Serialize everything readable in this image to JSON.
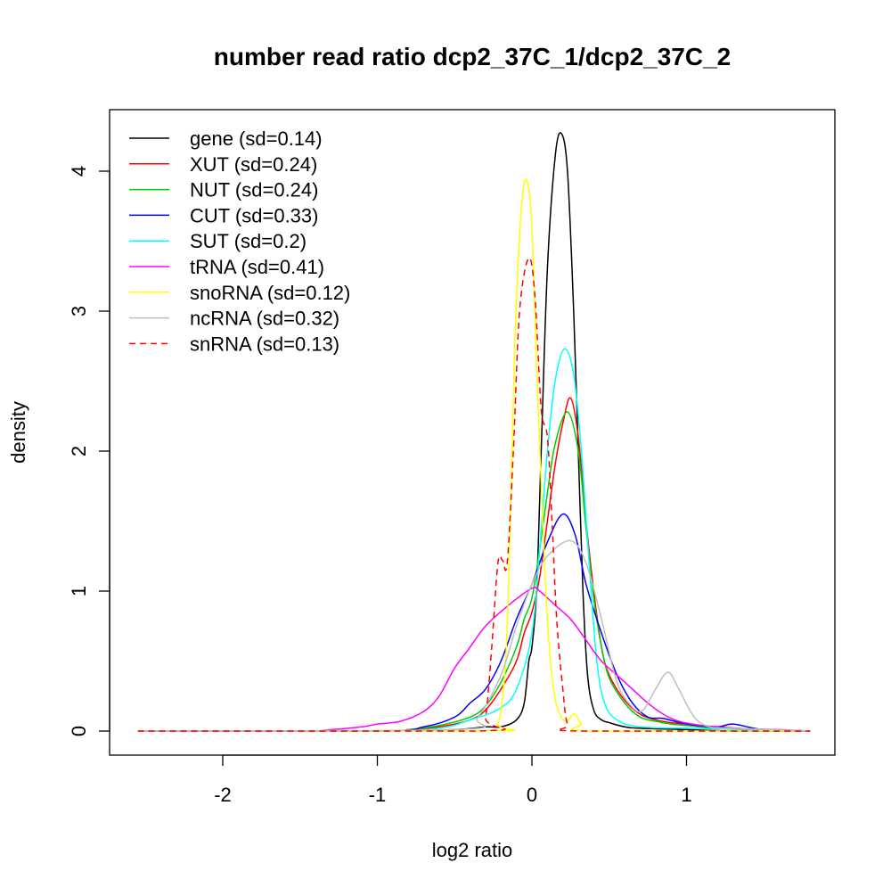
{
  "chart_data": {
    "type": "line",
    "title": "number read ratio dcp2_37C_1/dcp2_37C_2",
    "xlabel": "log2 ratio",
    "ylabel": "density",
    "xlim": [
      -2.7,
      1.95
    ],
    "ylim": [
      -0.17,
      4.44
    ],
    "xticks": [
      -2,
      -1,
      0,
      1
    ],
    "xtick_labels": [
      "-2",
      "-1",
      "0",
      "1"
    ],
    "yticks": [
      0,
      1,
      2,
      3,
      4
    ],
    "ytick_labels": [
      "0",
      "1",
      "2",
      "3",
      "4"
    ],
    "grid": false,
    "legend_position": "top-left",
    "series": [
      {
        "name": "gene (sd=0.14)",
        "color": "#000000",
        "dash": false,
        "x": [
          -2.55,
          -1,
          -0.5,
          -0.3,
          -0.2,
          -0.1,
          -0.05,
          -0.02,
          0,
          0.03,
          0.06,
          0.1,
          0.15,
          0.19,
          0.23,
          0.27,
          0.3,
          0.33,
          0.36,
          0.4,
          0.45,
          0.5,
          0.6,
          0.7,
          1.0,
          1.3,
          1.8
        ],
        "y": [
          0,
          0,
          0.01,
          0.03,
          0.03,
          0.08,
          0.2,
          0.5,
          0.6,
          1.0,
          2.0,
          3.3,
          4.1,
          4.27,
          4.0,
          3.0,
          2.0,
          1.0,
          0.4,
          0.15,
          0.08,
          0.06,
          0.03,
          0.02,
          0.01,
          0,
          0
        ]
      },
      {
        "name": "XUT (sd=0.24)",
        "color": "#ff0000",
        "dash": false,
        "x": [
          -2.55,
          -1,
          -0.8,
          -0.6,
          -0.4,
          -0.3,
          -0.2,
          -0.1,
          -0.05,
          0,
          0.05,
          0.1,
          0.15,
          0.2,
          0.25,
          0.3,
          0.35,
          0.4,
          0.45,
          0.5,
          0.6,
          0.7,
          0.8,
          0.9,
          1.0,
          1.2,
          1.5,
          1.8
        ],
        "y": [
          0,
          0,
          0.01,
          0.03,
          0.08,
          0.15,
          0.3,
          0.5,
          0.7,
          0.85,
          1.1,
          1.5,
          1.9,
          2.2,
          2.38,
          2.1,
          1.5,
          1.0,
          0.6,
          0.4,
          0.22,
          0.12,
          0.08,
          0.06,
          0.05,
          0.03,
          0.01,
          0
        ]
      },
      {
        "name": "NUT (sd=0.24)",
        "color": "#00cd00",
        "dash": false,
        "x": [
          -2.55,
          -1,
          -0.8,
          -0.6,
          -0.4,
          -0.3,
          -0.2,
          -0.1,
          -0.05,
          0,
          0.05,
          0.1,
          0.15,
          0.23,
          0.3,
          0.35,
          0.4,
          0.45,
          0.5,
          0.6,
          0.7,
          0.8,
          0.9,
          1.0,
          1.2,
          1.5,
          1.8
        ],
        "y": [
          0,
          0,
          0.01,
          0.04,
          0.1,
          0.18,
          0.35,
          0.6,
          0.8,
          0.95,
          1.3,
          1.7,
          2.05,
          2.28,
          2.0,
          1.45,
          0.95,
          0.6,
          0.38,
          0.2,
          0.1,
          0.07,
          0.05,
          0.04,
          0.02,
          0.01,
          0
        ]
      },
      {
        "name": "CUT (sd=0.33)",
        "color": "#0000ff",
        "dash": false,
        "x": [
          -2.55,
          -1,
          -0.7,
          -0.5,
          -0.4,
          -0.3,
          -0.2,
          -0.1,
          0,
          0.1,
          0.2,
          0.28,
          0.35,
          0.45,
          0.55,
          0.65,
          0.75,
          0.85,
          1.0,
          1.2,
          1.3,
          1.5,
          1.8
        ],
        "y": [
          0,
          0,
          0.03,
          0.1,
          0.2,
          0.3,
          0.5,
          0.8,
          1.05,
          1.35,
          1.55,
          1.4,
          1.05,
          0.7,
          0.4,
          0.2,
          0.1,
          0.09,
          0.05,
          0.03,
          0.05,
          0.01,
          0
        ]
      },
      {
        "name": "SUT (sd=0.2)",
        "color": "#00ffff",
        "dash": false,
        "x": [
          -2.55,
          -1,
          -0.6,
          -0.4,
          -0.21,
          -0.1,
          0,
          0.05,
          0.1,
          0.15,
          0.21,
          0.27,
          0.32,
          0.37,
          0.42,
          0.47,
          0.55,
          0.7,
          1.0,
          1.4,
          1.8
        ],
        "y": [
          0,
          0,
          0.02,
          0.08,
          0.16,
          0.3,
          0.7,
          1.3,
          2.0,
          2.5,
          2.73,
          2.55,
          2.0,
          1.2,
          0.5,
          0.2,
          0.08,
          0.03,
          0.02,
          0.01,
          0
        ]
      },
      {
        "name": "tRNA (sd=0.41)",
        "color": "#ff00ff",
        "dash": false,
        "x": [
          -2.55,
          -1.5,
          -1.3,
          -1.1,
          -1.0,
          -0.85,
          -0.7,
          -0.6,
          -0.5,
          -0.4,
          -0.3,
          -0.15,
          0,
          0.05,
          0.15,
          0.25,
          0.35,
          0.45,
          0.6,
          0.75,
          0.85,
          0.95,
          1.1,
          1.3,
          1.6,
          1.8
        ],
        "y": [
          0,
          0,
          0.01,
          0.03,
          0.05,
          0.07,
          0.14,
          0.25,
          0.45,
          0.6,
          0.75,
          0.9,
          1.02,
          1.0,
          0.9,
          0.8,
          0.65,
          0.5,
          0.35,
          0.2,
          0.12,
          0.07,
          0.04,
          0.02,
          0.01,
          0
        ]
      },
      {
        "name": "snoRNA (sd=0.12)",
        "color": "#ffff00",
        "dash": false,
        "x": [
          -2.55,
          -0.3,
          -0.22,
          -0.17,
          -0.14,
          -0.11,
          -0.07,
          -0.035,
          0,
          0.03,
          0.07,
          0.1,
          0.14,
          0.18,
          0.22,
          0.25,
          0.28,
          0.32,
          0.38,
          1.8
        ],
        "y": [
          0,
          0,
          0.05,
          0.5,
          1.5,
          2.8,
          3.7,
          3.94,
          3.6,
          2.6,
          1.5,
          0.8,
          0.3,
          0.12,
          0.07,
          0.1,
          0.12,
          0.05,
          0,
          0
        ]
      },
      {
        "name": "ncRNA (sd=0.32)",
        "color": "#bebebe",
        "dash": false,
        "x": [
          -2.55,
          -0.5,
          -0.35,
          -0.2,
          -0.1,
          0,
          0.1,
          0.25,
          0.35,
          0.45,
          0.55,
          0.65,
          0.72,
          0.8,
          0.88,
          0.95,
          1.05,
          1.15,
          1.3,
          1.8
        ],
        "y": [
          0,
          0.01,
          0.1,
          0.4,
          0.75,
          1.05,
          1.25,
          1.36,
          1.2,
          0.8,
          0.35,
          0.17,
          0.15,
          0.3,
          0.42,
          0.3,
          0.1,
          0.03,
          0.02,
          0
        ]
      },
      {
        "name": "snRNA (sd=0.13)",
        "color": "#ff0000",
        "dash": true,
        "x": [
          -2.55,
          -0.35,
          -0.3,
          -0.26,
          -0.22,
          -0.19,
          -0.16,
          -0.12,
          -0.08,
          -0.02,
          0.02,
          0.06,
          0.1,
          0.13,
          0.16,
          0.2,
          0.23,
          0.3,
          1.8
        ],
        "y": [
          0,
          0,
          0.1,
          0.6,
          1.2,
          1.22,
          1.2,
          2.0,
          3.0,
          3.38,
          3.1,
          2.3,
          2.1,
          1.5,
          0.8,
          0.3,
          0.05,
          0,
          0
        ]
      }
    ]
  }
}
